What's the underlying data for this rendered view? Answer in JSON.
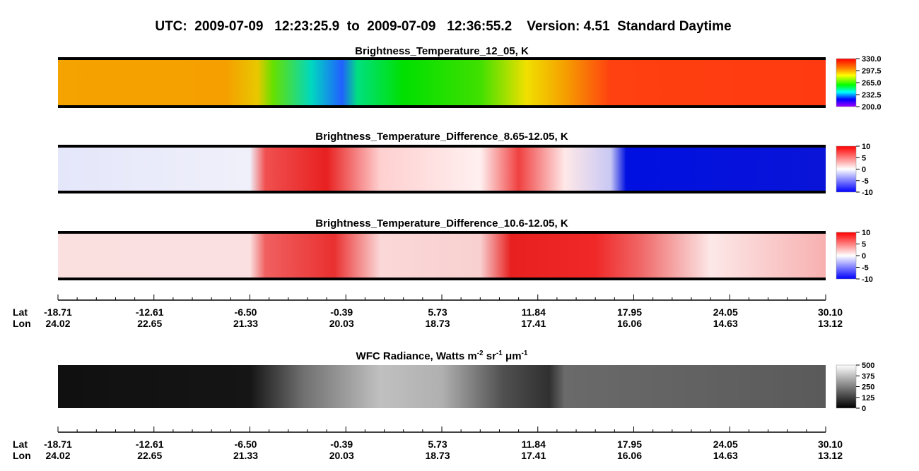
{
  "header": {
    "title": "UTC:  2009-07-09   12:23:25.9  to  2009-07-09   12:36:55.2    Version: 4.51  Standard Daytime"
  },
  "panels": [
    {
      "title": "Brightness_Temperature_12_05, K",
      "colorbar": [
        "330.0",
        "297.5",
        "265.0",
        "232.5",
        "200.0"
      ]
    },
    {
      "title": "Brightness_Temperature_Difference_8.65-12.05, K",
      "colorbar": [
        "10",
        "5",
        "0",
        "-5",
        "-10"
      ]
    },
    {
      "title": "Brightness_Temperature_Difference_10.6-12.05, K",
      "colorbar": [
        "10",
        "5",
        "0",
        "-5",
        "-10"
      ]
    },
    {
      "title_parts": [
        "WFC Radiance, Watts m",
        "-2",
        " sr",
        "-1",
        " μm",
        "-1"
      ],
      "colorbar": [
        "500",
        "375",
        "250",
        "125",
        "0"
      ]
    }
  ],
  "axes": [
    {
      "lat_name": "Lat",
      "lon_name": "Lon",
      "lat": [
        "-18.71",
        "-12.61",
        "-6.50",
        "-0.39",
        "5.73",
        "11.84",
        "17.95",
        "24.05",
        "30.10"
      ],
      "lon": [
        "24.02",
        "22.65",
        "21.33",
        "20.03",
        "18.73",
        "17.41",
        "16.06",
        "14.63",
        "13.12"
      ]
    },
    {
      "lat_name": "Lat",
      "lon_name": "Lon",
      "lat": [
        "-18.71",
        "-12.61",
        "-6.50",
        "-0.39",
        "5.73",
        "11.84",
        "17.95",
        "24.05",
        "30.10"
      ],
      "lon": [
        "24.02",
        "22.65",
        "21.33",
        "20.03",
        "18.73",
        "17.41",
        "16.06",
        "14.63",
        "13.12"
      ]
    }
  ]
}
